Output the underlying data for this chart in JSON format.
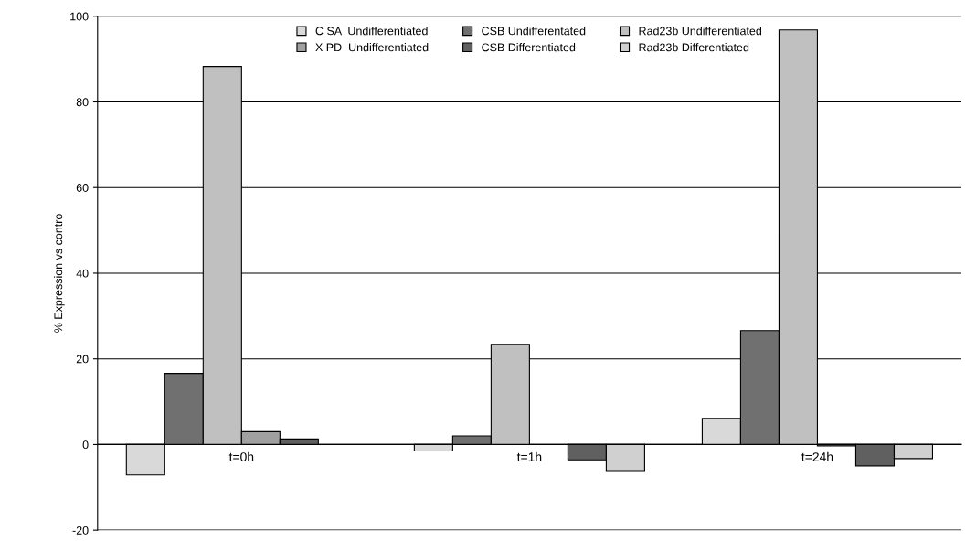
{
  "chart_data": {
    "type": "bar",
    "ylabel": "% Expression vs contro",
    "categories": [
      "t=0h",
      "t=1h",
      "t=24h"
    ],
    "series": [
      {
        "name": "C SA  Undifferentiated",
        "color": "#d9d9d9",
        "values": [
          -7.1,
          -1.5,
          6.1
        ]
      },
      {
        "name": "CSB Undifferentated",
        "color": "#707070",
        "values": [
          16.6,
          2.0,
          26.6
        ]
      },
      {
        "name": "Rad23b Undifferentiated",
        "color": "#c0c0c0",
        "values": [
          88.3,
          23.4,
          96.8
        ]
      },
      {
        "name": "X PD  Undifferentiated",
        "color": "#a0a0a0",
        "values": [
          3.0,
          null,
          -0.3
        ]
      },
      {
        "name": "CSB Differentiated",
        "color": "#606060",
        "values": [
          1.3,
          -3.6,
          -5.0
        ]
      },
      {
        "name": "Rad23b Differentiated",
        "color": "#d0d0d0",
        "values": [
          null,
          -6.1,
          -3.3
        ]
      }
    ],
    "ylim": [
      -20,
      100
    ],
    "yticks": [
      -20,
      0,
      20,
      40,
      60,
      80,
      100
    ],
    "grid": "y",
    "legend": "top"
  }
}
